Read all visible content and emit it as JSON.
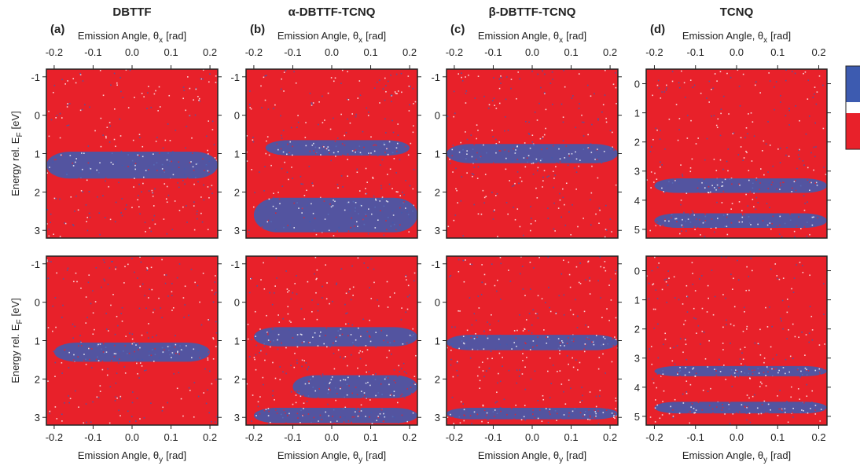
{
  "chart_data": [
    {
      "type": "heatmap",
      "label": "(a)",
      "title": "DBTTF",
      "xlabel": [
        "Emission Angle, θ",
        "x",
        "[rad]"
      ],
      "ylabel": [
        "Energy rel. E",
        "F",
        "[eV]"
      ],
      "xlim": [
        -0.22,
        0.22
      ],
      "xticks": [
        -0.2,
        -0.1,
        {
          "value": 0,
          "label": "0.0"
        },
        0.1,
        0.2
      ],
      "ylim": [
        -1.2,
        3.2
      ],
      "yticks": [
        -1,
        0,
        1,
        2,
        3
      ],
      "bands": [
        {
          "center": 1.3,
          "width": 0.7,
          "xmin": -0.22,
          "xmax": 0.22
        }
      ]
    },
    {
      "type": "heatmap",
      "label": "(b)",
      "title": "α-DBTTF-TCNQ",
      "xlabel": [
        "Emission Angle, θ",
        "x",
        "[rad]"
      ],
      "xlim": [
        -0.22,
        0.22
      ],
      "xticks": [
        -0.2,
        -0.1,
        {
          "value": 0,
          "label": "0.0"
        },
        0.1,
        0.2
      ],
      "ylim": [
        -1.2,
        3.2
      ],
      "yticks": [
        -1,
        0,
        1,
        2,
        3
      ],
      "bands": [
        {
          "center": 0.85,
          "width": 0.4,
          "xmin": -0.17,
          "xmax": 0.2
        },
        {
          "center": 2.6,
          "width": 0.9,
          "xmin": -0.2,
          "xmax": 0.22
        }
      ]
    },
    {
      "type": "heatmap",
      "label": "(c)",
      "title": "β-DBTTF-TCNQ",
      "xlabel": [
        "Emission Angle, θ",
        "x",
        "[rad]"
      ],
      "xlim": [
        -0.22,
        0.22
      ],
      "xticks": [
        -0.2,
        -0.1,
        {
          "value": 0,
          "label": "0.0"
        },
        0.1,
        0.2
      ],
      "ylim": [
        -1.2,
        3.2
      ],
      "yticks": [
        -1,
        0,
        1,
        2,
        3
      ],
      "bands": [
        {
          "center": 1.0,
          "width": 0.5,
          "xmin": -0.22,
          "xmax": 0.22
        }
      ]
    },
    {
      "type": "heatmap",
      "label": "(d)",
      "title": "TCNQ",
      "xlabel": [
        "Emission Angle, θ",
        "x",
        "[rad]"
      ],
      "xlim": [
        -0.22,
        0.22
      ],
      "xticks": [
        -0.2,
        -0.1,
        {
          "value": 0,
          "label": "0.0"
        },
        0.1,
        0.2
      ],
      "ylim": [
        -0.5,
        5.3
      ],
      "yticks": [
        0,
        1,
        2,
        3,
        4,
        5
      ],
      "bands": [
        {
          "center": 3.5,
          "width": 0.5,
          "xmin": -0.2,
          "xmax": 0.22
        },
        {
          "center": 4.7,
          "width": 0.5,
          "xmin": -0.2,
          "xmax": 0.22
        }
      ]
    },
    {
      "type": "heatmap",
      "xlabel": [
        "Emission Angle, θ",
        "y",
        "[rad]"
      ],
      "ylabel": [
        "Energy rel. E",
        "F",
        "[eV]"
      ],
      "xlim": [
        -0.22,
        0.22
      ],
      "xticks": [
        -0.2,
        -0.1,
        {
          "value": 0,
          "label": "0.0"
        },
        0.1,
        0.2
      ],
      "ylim": [
        -1.2,
        3.2
      ],
      "yticks": [
        -1,
        0,
        1,
        2,
        3
      ],
      "bands": [
        {
          "center": 1.3,
          "width": 0.5,
          "xmin": -0.2,
          "xmax": 0.2
        }
      ]
    },
    {
      "type": "heatmap",
      "xlabel": [
        "Emission Angle, θ",
        "y",
        "[rad]"
      ],
      "xlim": [
        -0.22,
        0.22
      ],
      "xticks": [
        -0.2,
        -0.1,
        {
          "value": 0,
          "label": "0.0"
        },
        0.1,
        0.2
      ],
      "ylim": [
        -1.2,
        3.2
      ],
      "yticks": [
        -1,
        0,
        1,
        2,
        3
      ],
      "bands": [
        {
          "center": 0.9,
          "width": 0.5,
          "xmin": -0.2,
          "xmax": 0.22
        },
        {
          "center": 2.2,
          "width": 0.6,
          "xmin": -0.1,
          "xmax": 0.22
        },
        {
          "center": 2.95,
          "width": 0.4,
          "xmin": -0.2,
          "xmax": 0.22
        }
      ]
    },
    {
      "type": "heatmap",
      "xlabel": [
        "Emission Angle, θ",
        "y",
        "[rad]"
      ],
      "xlim": [
        -0.22,
        0.22
      ],
      "xticks": [
        -0.2,
        -0.1,
        {
          "value": 0,
          "label": "0.0"
        },
        0.1,
        0.2
      ],
      "ylim": [
        -1.2,
        3.2
      ],
      "yticks": [
        -1,
        0,
        1,
        2,
        3
      ],
      "bands": [
        {
          "center": 1.05,
          "width": 0.4,
          "xmin": -0.22,
          "xmax": 0.22
        },
        {
          "center": 2.9,
          "width": 0.3,
          "xmin": -0.22,
          "xmax": 0.22
        }
      ]
    },
    {
      "type": "heatmap",
      "xlabel": [
        "Emission Angle, θ",
        "y",
        "[rad]"
      ],
      "xlim": [
        -0.22,
        0.22
      ],
      "xticks": [
        -0.2,
        -0.1,
        {
          "value": 0,
          "label": "0.0"
        },
        0.1,
        0.2
      ],
      "ylim": [
        -0.5,
        5.3
      ],
      "yticks": [
        0,
        1,
        2,
        3,
        4,
        5
      ],
      "bands": [
        {
          "center": 3.45,
          "width": 0.35,
          "xmin": -0.2,
          "xmax": 0.22
        },
        {
          "center": 4.7,
          "width": 0.4,
          "xmin": -0.2,
          "xmax": 0.22
        }
      ]
    }
  ]
}
